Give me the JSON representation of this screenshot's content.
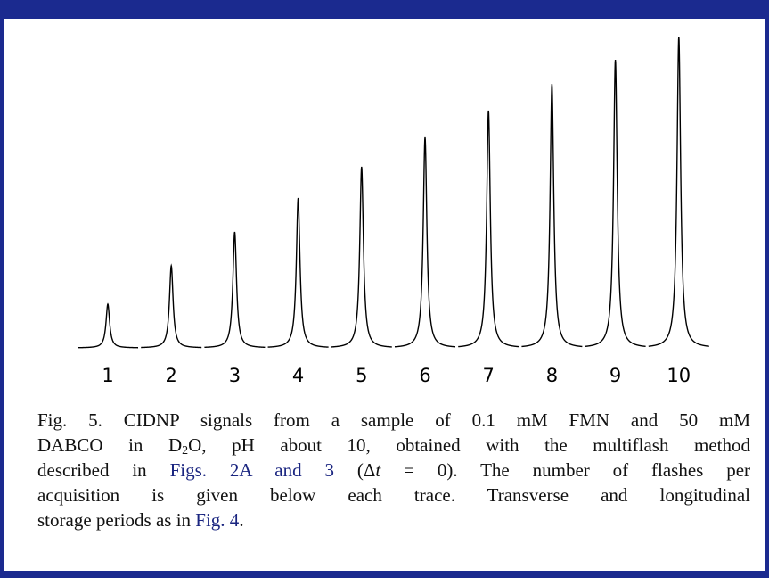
{
  "chart_data": {
    "type": "peaks",
    "categories": [
      "1",
      "2",
      "3",
      "4",
      "5",
      "6",
      "7",
      "8",
      "9",
      "10"
    ],
    "values": [
      49,
      92,
      130,
      168,
      203,
      236,
      266,
      296,
      323,
      349
    ],
    "color": "#000000"
  },
  "caption": {
    "lines": [
      [
        {
          "text": "Fig. 5. CIDNP signals from a sample of 0.1 mM FMN and 50 mM"
        }
      ],
      [
        {
          "text": "DABCO in D"
        },
        {
          "text": "2",
          "style": "sub"
        },
        {
          "text": "O, pH about 10, obtained with the multiflash method"
        }
      ],
      [
        {
          "text": "described in "
        },
        {
          "text": "Figs. 2A and 3",
          "style": "link"
        },
        {
          "text": " (Δ"
        },
        {
          "text": "t",
          "style": "italic"
        },
        {
          "text": " = 0). The number of flashes per"
        }
      ],
      [
        {
          "text": "acquisition is given below each trace. Transverse and longitudinal"
        }
      ],
      [
        {
          "text": "storage periods as in "
        },
        {
          "text": "Fig. 4",
          "style": "link"
        },
        {
          "text": "."
        }
      ]
    ]
  }
}
